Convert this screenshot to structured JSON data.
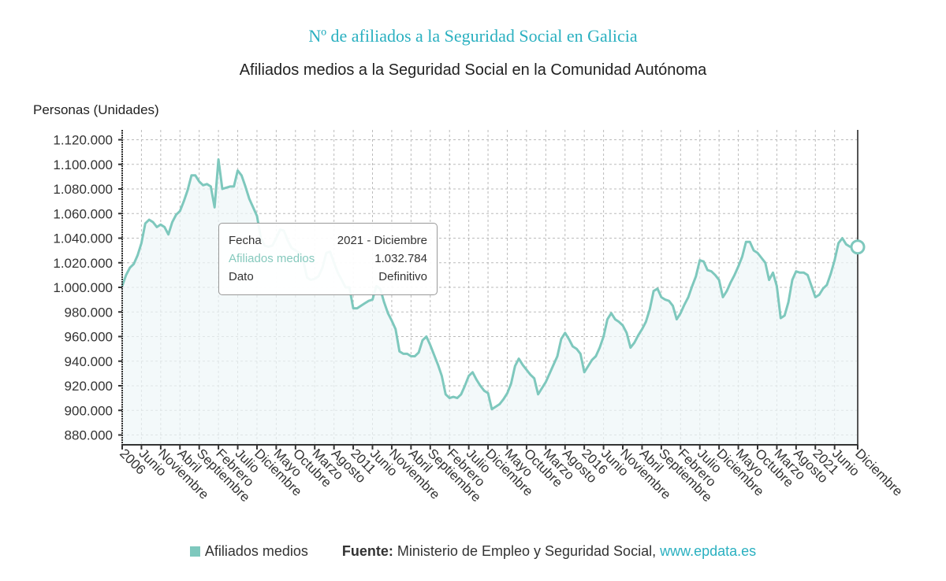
{
  "header": {
    "title": "Nº de afiliados a la Seguridad Social en Galicia",
    "subtitle": "Afiliados medios a la Seguridad Social en la Comunidad Autónoma",
    "y_unit": "Personas (Unidades)"
  },
  "tooltip": {
    "rows": [
      {
        "label": "Fecha",
        "value": "2021 - Diciembre"
      },
      {
        "label": "Afiliados medios",
        "value": "1.032.784"
      },
      {
        "label": "Dato",
        "value": "Definitivo"
      }
    ]
  },
  "legend": {
    "series_label": "Afiliados medios",
    "source_label": "Fuente:",
    "source_text": " Ministerio de Empleo y Seguridad Social, ",
    "source_link": "www.epdata.es"
  },
  "colors": {
    "title": "#2ab0c0",
    "series": "#7ec8bd",
    "area_fill": "#eef6f8"
  },
  "chart_data": {
    "type": "area",
    "title": "Nº de afiliados a la Seguridad Social en Galicia",
    "subtitle": "Afiliados medios a la Seguridad Social en la Comunidad Autónoma",
    "xlabel": "",
    "ylabel": "Personas (Unidades)",
    "ylim": [
      872000,
      1128000
    ],
    "yticks": [
      880000,
      900000,
      920000,
      940000,
      960000,
      980000,
      1000000,
      1020000,
      1040000,
      1060000,
      1080000,
      1100000,
      1120000
    ],
    "ytick_labels": [
      "880.000",
      "900.000",
      "920.000",
      "940.000",
      "960.000",
      "980.000",
      "1.000.000",
      "1.020.000",
      "1.040.000",
      "1.060.000",
      "1.080.000",
      "1.100.000",
      "1.120.000"
    ],
    "x_start": "2006-01",
    "x_end": "2021-12",
    "xtick_labels": [
      "2006",
      "Junio",
      "Noviembre",
      "Abril",
      "Septiembre",
      "Febrero",
      "Julio",
      "Diciembre",
      "Mayo",
      "Octubre",
      "Marzo",
      "Agosto",
      "2011",
      "Junio",
      "Noviembre",
      "Abril",
      "Septiembre",
      "Febrero",
      "Julio",
      "Diciembre",
      "Mayo",
      "Octubre",
      "Marzo",
      "Agosto",
      "2016",
      "Junio",
      "Noviembre",
      "Abril",
      "Septiembre",
      "Febrero",
      "Julio",
      "Diciembre",
      "Mayo",
      "Octubre",
      "Marzo",
      "Agosto",
      "2021",
      "Junio",
      "Diciembre"
    ],
    "xtick_month_index": [
      0,
      5,
      10,
      15,
      20,
      25,
      30,
      35,
      40,
      45,
      50,
      55,
      60,
      65,
      70,
      75,
      80,
      85,
      90,
      95,
      100,
      105,
      110,
      115,
      120,
      125,
      130,
      135,
      140,
      145,
      150,
      155,
      160,
      165,
      170,
      175,
      180,
      185,
      191
    ],
    "grid": true,
    "legend": "bottom",
    "highlight": {
      "label": "2021 - Diciembre",
      "value": 1032784
    },
    "series": [
      {
        "name": "Afiliados medios",
        "values": [
          1001000,
          1010000,
          1016000,
          1019000,
          1026000,
          1036000,
          1052000,
          1055000,
          1053000,
          1049000,
          1051000,
          1049000,
          1043000,
          1053000,
          1059000,
          1062000,
          1070000,
          1079000,
          1091000,
          1091000,
          1086000,
          1083000,
          1084000,
          1082000,
          1065000,
          1104000,
          1080000,
          1081000,
          1082000,
          1082000,
          1095000,
          1091000,
          1082000,
          1072000,
          1065000,
          1058000,
          1040000,
          1034000,
          1033000,
          1034000,
          1040000,
          1047000,
          1046000,
          1038000,
          1032000,
          1030000,
          1028000,
          1022000,
          1008000,
          1006000,
          1007000,
          1009000,
          1016000,
          1028000,
          1029000,
          1020000,
          1012000,
          1006000,
          1000000,
          1000000,
          983000,
          983000,
          985000,
          987000,
          989000,
          990000,
          1001000,
          999000,
          988000,
          979000,
          973000,
          966000,
          948000,
          946000,
          946000,
          944000,
          944000,
          947000,
          957000,
          960000,
          953000,
          945000,
          937000,
          928000,
          913000,
          910000,
          911000,
          910000,
          913000,
          920000,
          928000,
          931000,
          925000,
          920000,
          916000,
          914000,
          901000,
          903000,
          905000,
          909000,
          914000,
          922000,
          936000,
          942000,
          937000,
          933000,
          929000,
          926000,
          913000,
          918000,
          923000,
          930000,
          937000,
          944000,
          958000,
          963000,
          958000,
          952000,
          950000,
          946000,
          931000,
          936000,
          941000,
          944000,
          951000,
          960000,
          974000,
          979000,
          974000,
          972000,
          969000,
          963000,
          951000,
          955000,
          961000,
          966000,
          972000,
          982000,
          997000,
          999000,
          992000,
          990000,
          989000,
          985000,
          974000,
          979000,
          986000,
          992000,
          1001000,
          1009000,
          1022000,
          1021000,
          1014000,
          1013000,
          1010000,
          1006000,
          992000,
          997000,
          1004000,
          1010000,
          1017000,
          1025000,
          1037000,
          1037000,
          1030000,
          1028000,
          1024000,
          1020000,
          1006000,
          1012000,
          1001000,
          975000,
          977000,
          988000,
          1006000,
          1013000,
          1012000,
          1012000,
          1010000,
          1001000,
          992000,
          994000,
          999000,
          1002000,
          1011000,
          1022000,
          1036000,
          1040000,
          1035000,
          1033000,
          1033000,
          1032784
        ]
      }
    ]
  }
}
